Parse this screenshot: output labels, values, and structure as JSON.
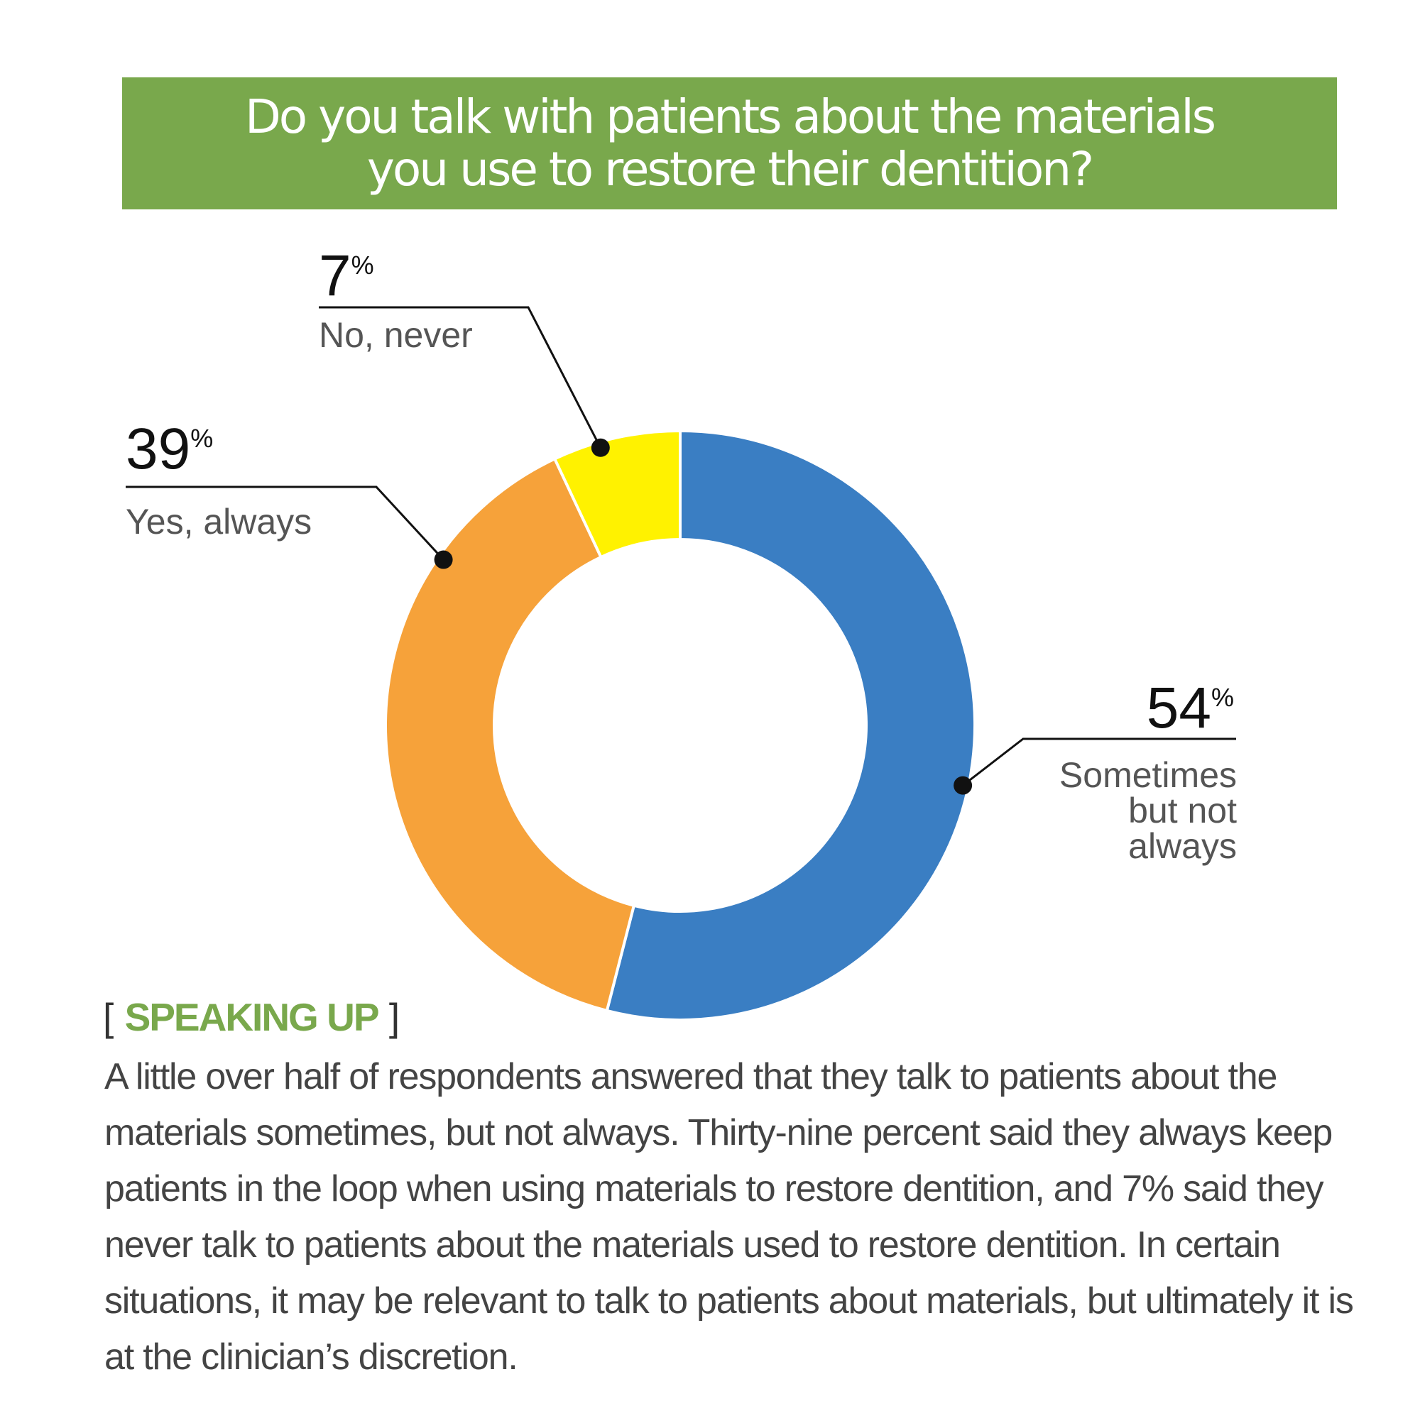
{
  "chart_data": {
    "type": "pie",
    "title": "Do you talk with patients about the materials\nyou use to restore their dentition?",
    "slices": [
      {
        "label": "Sometimes but not always",
        "value": 54,
        "color": "#3a7ec3"
      },
      {
        "label": "Yes, always",
        "value": 39,
        "color": "#f6a23a"
      },
      {
        "label": "No, never",
        "value": 7,
        "color": "#fff200"
      }
    ],
    "value_suffix": "%",
    "legend": "none"
  },
  "labels": {
    "slice_0_lines": [
      "Sometimes",
      "but not",
      "always"
    ],
    "slice_1_lines": [
      "Yes, always"
    ],
    "slice_2_lines": [
      "No, never"
    ]
  },
  "section": {
    "open_bracket": "[",
    "heading": "SPEAKING UP",
    "close_bracket": "]",
    "body": "A little over half of respondents answered that they talk to patients about the materials sometimes, but not always. Thirty-nine percent said they always keep patients in the loop when using materials to restore dentition, and 7% said they never talk to patients about the materials used to restore dentition. In certain situations, it may be relevant to talk to patients about materials, but ultimately it is at the clinician’s discretion."
  }
}
